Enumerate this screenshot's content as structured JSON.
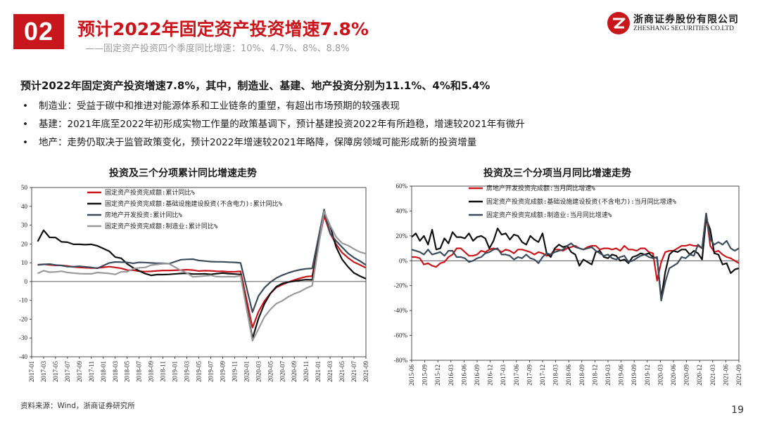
{
  "header": {
    "section_number": "02",
    "title": "预计2022年固定资产投资增速7.8%",
    "subtitle": "——固定资产投资四个季度同比增速：10%、4.7%、8%、8.8%"
  },
  "logo": {
    "cn": "浙商证券股份有限公司",
    "en": "ZHESHANG SECURITIES CO.LTD",
    "brand_color": "#c8161d"
  },
  "body": {
    "lead": "预计2022年固定资产投资增速7.8%，其中，制造业、基建、地产投资分别为11.1%、4%和5.4%",
    "bullets": [
      "制造业：受益于碳中和推进对能源体系和工业链条的重塑，有超出市场预期的较强表现",
      "基建：2021年底至2022年初形成实物工作量的政策基调下，预计基建投资2022年有所趋稳，增速较2021年有微升",
      "地产：走势仍取决于监管政策变化，预计2022年增速较2021年略降，保障房领域可能形成新的投资增量"
    ]
  },
  "chart_data": [
    {
      "type": "line",
      "title": "投资及三个分项累计同比增速走势",
      "xlabel": "",
      "ylabel": "",
      "ylim": [
        -40,
        50
      ],
      "yticks": [
        50,
        40,
        30,
        20,
        10,
        0,
        -10,
        -20,
        -30,
        -40
      ],
      "x": [
        "2017-02",
        "2017-03",
        "2017-04",
        "2017-05",
        "2017-06",
        "2017-07",
        "2017-08",
        "2017-09",
        "2017-10",
        "2017-11",
        "2017-12",
        "2018-02",
        "2018-03",
        "2018-04",
        "2018-05",
        "2018-06",
        "2018-07",
        "2018-08",
        "2018-09",
        "2018-10",
        "2018-11",
        "2018-12",
        "2019-02",
        "2019-03",
        "2019-04",
        "2019-05",
        "2019-06",
        "2019-07",
        "2019-08",
        "2019-09",
        "2019-10",
        "2019-11",
        "2019-12",
        "2020-02",
        "2020-03",
        "2020-04",
        "2020-05",
        "2020-06",
        "2020-07",
        "2020-08",
        "2020-09",
        "2020-10",
        "2020-11",
        "2020-12",
        "2021-02",
        "2021-03",
        "2021-04",
        "2021-05",
        "2021-06",
        "2021-07",
        "2021-08",
        "2021-09"
      ],
      "xtick_labels": [
        "2017-01",
        "2017-03",
        "2017-05",
        "2017-07",
        "2017-09",
        "2017-11",
        "2018-01",
        "2018-03",
        "2018-05",
        "2018-07",
        "2018-09",
        "2018-11",
        "2019-01",
        "2019-03",
        "2019-05",
        "2019-07",
        "2019-09",
        "2019-11",
        "2020-01",
        "2020-03",
        "2020-05",
        "2020-07",
        "2020-09",
        "2020-11",
        "2021-01",
        "2021-03",
        "2021-05",
        "2021-07",
        "2021-09"
      ],
      "legend_position": "top-left",
      "series": [
        {
          "name": "固定资产投资完成额:累计同比%",
          "color": "#c8161d",
          "values": [
            8.9,
            9.2,
            8.9,
            8.6,
            8.6,
            8.3,
            7.8,
            7.5,
            7.3,
            7.2,
            7.2,
            7.9,
            7.5,
            7.0,
            6.1,
            6.0,
            5.5,
            5.3,
            5.4,
            5.7,
            5.9,
            5.9,
            6.1,
            6.3,
            6.1,
            5.6,
            5.8,
            5.7,
            5.5,
            5.4,
            5.2,
            5.2,
            5.4,
            -24.5,
            -16.1,
            -10.3,
            -6.3,
            -3.1,
            -1.6,
            -0.3,
            0.8,
            1.8,
            2.6,
            2.9,
            35.0,
            25.6,
            19.9,
            15.4,
            12.6,
            10.3,
            8.9,
            7.3
          ]
        },
        {
          "name": "固定资产投资完成额:基础设施建设投资(不含电力):累计同比%",
          "color": "#111111",
          "values": [
            21.3,
            27.3,
            23.5,
            23.4,
            21.1,
            20.9,
            19.8,
            19.8,
            19.6,
            19.8,
            19.0,
            16.1,
            13.0,
            12.4,
            9.4,
            7.3,
            5.7,
            4.2,
            3.3,
            3.7,
            3.7,
            3.8,
            4.3,
            4.4,
            4.0,
            4.0,
            4.1,
            3.8,
            4.2,
            4.5,
            4.2,
            4.0,
            3.8,
            -30.3,
            -19.7,
            -11.8,
            -6.3,
            -2.7,
            -1.0,
            -0.3,
            0.2,
            0.7,
            1.0,
            0.9,
            36.6,
            29.7,
            18.4,
            11.8,
            7.8,
            4.6,
            2.9,
            1.5
          ]
        },
        {
          "name": "房地产开发投资:累计同比%",
          "color": "#3c4b5a",
          "values": [
            8.9,
            9.1,
            9.3,
            8.8,
            8.5,
            7.9,
            7.9,
            8.1,
            7.8,
            7.5,
            7.0,
            9.9,
            10.4,
            10.3,
            10.2,
            9.7,
            10.2,
            10.1,
            9.9,
            9.7,
            9.7,
            9.5,
            11.6,
            11.8,
            11.9,
            11.2,
            10.9,
            10.6,
            10.5,
            10.5,
            10.3,
            10.2,
            9.9,
            -16.3,
            -7.7,
            -3.3,
            -0.3,
            1.9,
            3.4,
            4.6,
            5.6,
            6.3,
            6.8,
            7.0,
            38.3,
            25.6,
            21.6,
            18.3,
            15.0,
            12.7,
            10.9,
            8.8
          ]
        },
        {
          "name": "固定资产投资完成额:制造业:累计同比%",
          "color": "#9a9a9a",
          "values": [
            4.3,
            5.8,
            5.0,
            5.1,
            5.5,
            4.8,
            4.5,
            4.2,
            4.1,
            4.1,
            4.8,
            4.3,
            3.8,
            5.2,
            5.2,
            6.8,
            7.3,
            7.5,
            8.7,
            9.1,
            9.5,
            9.5,
            5.9,
            4.6,
            2.5,
            2.7,
            3.0,
            3.3,
            2.6,
            2.5,
            2.6,
            2.5,
            3.1,
            -31.5,
            -25.2,
            -18.8,
            -14.8,
            -11.7,
            -10.2,
            -8.1,
            -6.5,
            -5.3,
            -3.5,
            -2.2,
            37.3,
            29.8,
            23.8,
            20.4,
            19.2,
            17.3,
            15.7,
            14.8
          ]
        }
      ]
    },
    {
      "type": "line",
      "title": "投资及三个分项当月同比增速走势",
      "xlabel": "",
      "ylabel": "",
      "ylim": [
        -80,
        60
      ],
      "yticks": [
        "60%",
        "40%",
        "20%",
        "0%",
        "-20%",
        "-40%",
        "-60%",
        "-80%"
      ],
      "x_range": [
        "2015-06",
        "2021-09"
      ],
      "xtick_labels": [
        "2015-06",
        "2015-09",
        "2015-12",
        "2016-03",
        "2016-06",
        "2016-09",
        "2016-12",
        "2017-03",
        "2017-06",
        "2017-09",
        "2017-12",
        "2018-03",
        "2018-06",
        "2018-09",
        "2018-12",
        "2019-03",
        "2019-06",
        "2019-09",
        "2019-12",
        "2020-03",
        "2020-06",
        "2020-09",
        "2020-12",
        "2021-03",
        "2021-06",
        "2021-09"
      ],
      "legend_position": "top-left",
      "series": [
        {
          "name": "房地产开发投资完成额:当月同比增速%",
          "color": "#c8161d",
          "values": [
            3,
            3,
            2,
            -3,
            -2,
            -4,
            -5,
            -2,
            -1,
            3,
            5,
            10,
            10,
            7,
            4,
            4,
            5,
            8,
            7,
            9,
            10,
            9,
            7,
            9,
            8,
            6,
            9,
            9,
            8,
            7,
            5,
            7,
            6,
            4,
            5,
            9,
            9,
            8,
            10,
            11,
            12,
            10,
            9,
            11,
            12,
            12,
            9,
            10,
            10,
            9,
            10,
            8,
            12,
            9,
            9,
            8,
            10,
            10,
            7,
            6,
            -16,
            -1,
            7,
            8,
            8,
            10,
            12,
            12,
            13,
            12,
            12,
            10,
            38,
            12,
            7,
            8,
            5,
            3,
            2,
            0,
            -2
          ]
        },
        {
          "name": "固定资产投资完成额:基础设施建设投资(不含电力):当月同比增速%",
          "color": "#111111",
          "values": [
            19,
            22,
            16,
            20,
            13,
            25,
            9,
            10,
            18,
            14,
            23,
            19,
            19,
            18,
            22,
            16,
            19,
            20,
            18,
            10,
            16,
            26,
            21,
            22,
            17,
            21,
            20,
            15,
            13,
            20,
            17,
            15,
            22,
            6,
            3,
            10,
            13,
            11,
            12,
            7,
            5,
            -4,
            1,
            -1,
            -3,
            7,
            8,
            3,
            2,
            5,
            4,
            0,
            1,
            -2,
            3,
            4,
            6,
            5,
            6,
            3,
            2,
            -30,
            -9,
            5,
            8,
            7,
            9,
            9,
            5,
            8,
            6,
            1,
            34,
            25,
            6,
            5,
            -3,
            -2,
            -10,
            -7,
            -6
          ]
        },
        {
          "name": "固定资产投资完成额:制造业:当月同比增速%",
          "color": "#3c4b5a",
          "values": [
            9,
            8,
            7,
            5,
            9,
            5,
            6,
            7,
            4,
            8,
            8,
            3,
            3,
            2,
            -1,
            0,
            2,
            3,
            6,
            7,
            9,
            10,
            5,
            5,
            4,
            1,
            3,
            2,
            5,
            2,
            1,
            -2,
            3,
            6,
            5,
            7,
            8,
            9,
            12,
            14,
            11,
            10,
            9,
            10,
            11,
            8,
            6,
            4,
            5,
            2,
            1,
            3,
            4,
            -1,
            0,
            2,
            4,
            5,
            3,
            2,
            3,
            -32,
            -17,
            -6,
            -4,
            -2,
            3,
            2,
            5,
            4,
            13,
            10,
            38,
            17,
            13,
            15,
            13,
            16,
            10,
            8,
            10
          ]
        }
      ]
    }
  ],
  "source": "资料来源：Wind，浙商证券研究所",
  "page_number": "19"
}
